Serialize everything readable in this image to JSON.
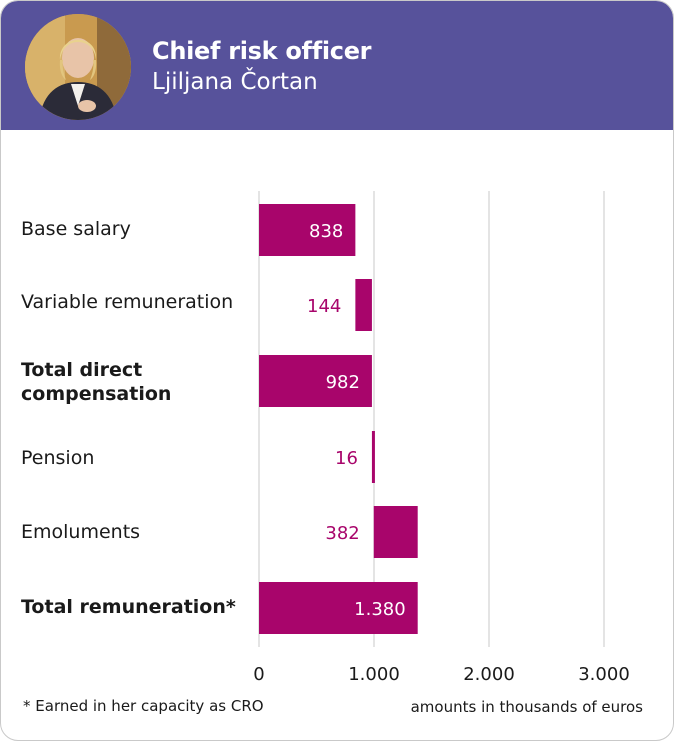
{
  "header": {
    "role": "Chief risk officer",
    "name": "Ljiljana Čortan"
  },
  "colors": {
    "header_bg": "#57529b",
    "bar": "#a8056b",
    "grid": "#c8c8c8"
  },
  "chart_data": {
    "type": "bar",
    "orientation": "horizontal",
    "style": "waterfall",
    "categories": [
      "Base salary",
      "Variable remuneration",
      "Total direct compensation",
      "Pension",
      "Emoluments",
      "Total remuneration*"
    ],
    "values": [
      838,
      144,
      982,
      16,
      382,
      1380
    ],
    "starts": [
      0,
      838,
      0,
      982,
      998,
      0
    ],
    "value_labels": [
      "838",
      "144",
      "982",
      "16",
      "382",
      "1.380"
    ],
    "bold": [
      false,
      false,
      true,
      false,
      false,
      true
    ],
    "xlim": [
      0,
      3000
    ],
    "xticks": [
      0,
      1000,
      2000,
      3000
    ],
    "xtick_labels": [
      "0",
      "1.000",
      "2.000",
      "3.000"
    ],
    "footnote": "* Earned in her capacity as CRO",
    "units_note": "amounts in thousands of euros"
  }
}
